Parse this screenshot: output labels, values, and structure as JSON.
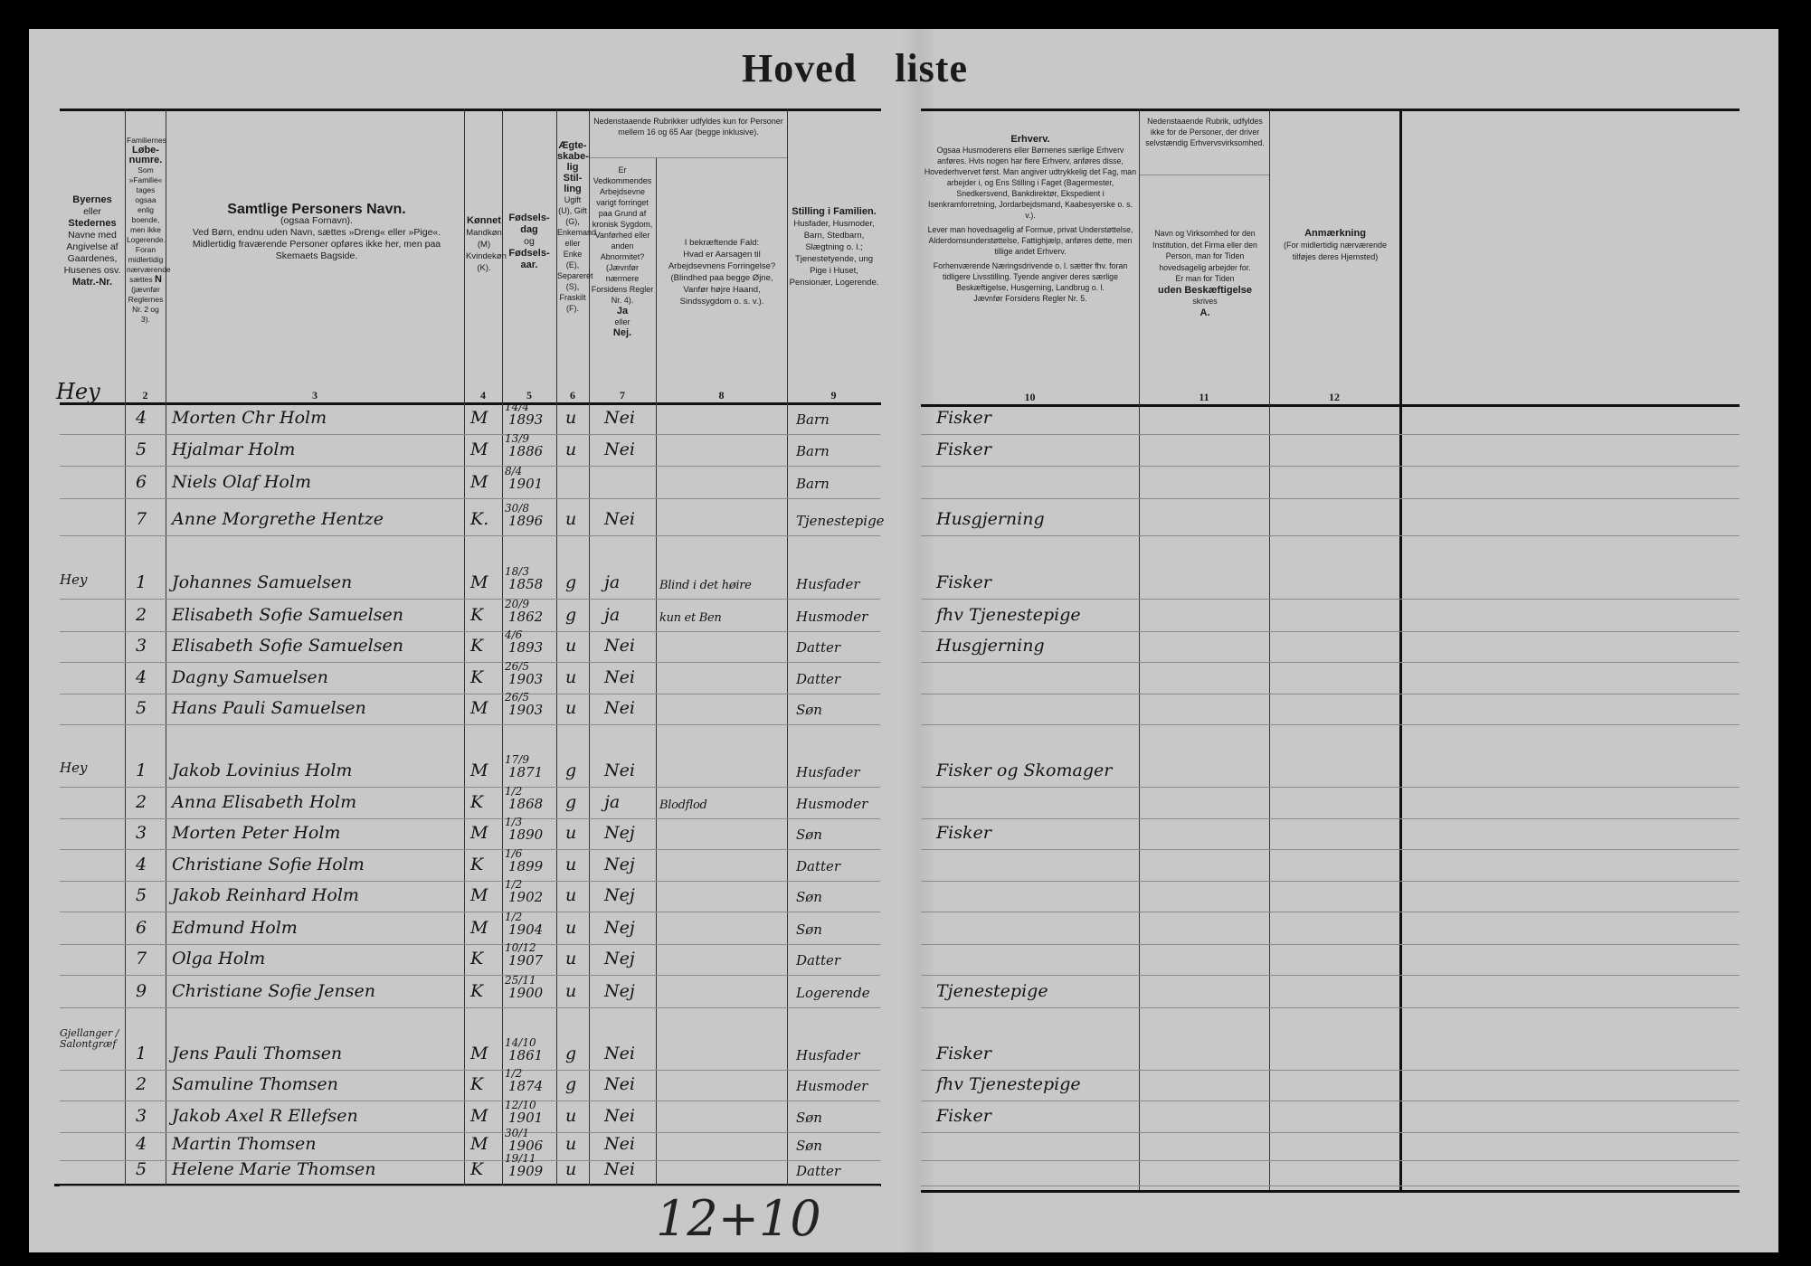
{
  "title": "Hoved  liste",
  "headers": {
    "c1": [
      "Byernes",
      "eller",
      "Stedernes",
      "Navne med Angivelse af Gaardenes, Husenes osv.",
      "Matr.-Nr."
    ],
    "c2": [
      "Familiernes",
      "Løbe-numre.",
      "Som »Familie« tages ogsaa enlig boende, men ikke Logerende. Foran midlertidig nærværende sættes",
      "N",
      "(jævnfør Reglernes Nr. 2 og 3)."
    ],
    "c3": [
      "Samtlige Personers Navn.",
      "(ogsaa Fornavn).",
      "Ved Børn, endnu uden Navn, sættes »Dreng« eller »Pige«.",
      "Midlertidig fraværende Personer opføres ikke her, men paa Skemaets Bagside."
    ],
    "c4": [
      "Kønnet",
      "Mandkøn (M) Kvindekøn (K)."
    ],
    "c5": [
      "Fødsels-dag",
      "og",
      "Fødsels-aar."
    ],
    "c6": [
      "Ægte-skabe-lig Stil-ling",
      "Ugift (U), Gift (G), Enkemand eller Enke (E), Separeret (S), Fraskilt (F)."
    ],
    "c78_top": "Nedenstaaende Rubrikker udfyldes kun for Personer mellem 16 og 65 Aar (begge inklusive).",
    "c7": [
      "Er Vedkommendes Arbejdsevne varigt forringet paa Grund af kronisk Sygdom, Vanførhed eller anden Abnormitet? (Jævnfør nærmere Forsidens Regler Nr. 4).",
      "Ja",
      "eller",
      "Nej."
    ],
    "c8": [
      "I bekræftende Fald:",
      "Hvad er Aarsagen til Arbejdsevnens Forringelse?",
      "(Blindhed paa begge Øjne, Vanfør højre Haand, Sindssygdom o. s. v.)."
    ],
    "c9": [
      "Stilling i Familien.",
      "Husfader, Husmoder, Barn, Stedbarn, Slægtning o. l.; Tjenestetyende, ung Pige i Huset, Pensionær, Logerende."
    ],
    "c10": [
      "Erhverv.",
      "Ogsaa Husmoderens eller Børnenes særlige Erhverv anføres. Hvis nogen har flere Erhverv, anføres disse, Hovederhvervet først. Man angiver udtrykkelig det Fag, man arbejder i, og Ens Stilling i Faget (Bagermester, Snedkersvend, Bankdirektør, Ekspedient i Isenkramforretning, Jordarbejdsmand, Kaabesyerske o. s. v.).",
      "Lever man hovedsagelig af Formue, privat Understøttelse, Alderdomsunderstøttelse, Fattighjælp, anføres dette, men tillige andet Erhverv.",
      "Forhenværende Næringsdrivende o. l. sætter fhv. foran tidligere Livsstilling. Tyende angiver deres særlige Beskæftigelse, Husgerning, Landbrug o. l.",
      "Jævnfør Forsidens Regler Nr. 5."
    ],
    "c11_top": "Nedenstaaende Rubrik, udfyldes ikke for de Personer, der driver selvstændig Erhvervsvirksomhed.",
    "c11": [
      "Navn og Virksomhed for den Institution, det Firma eller den Person, man for Tiden hovedsagelig arbejder for.",
      "Er man for Tiden",
      "uden Beskæftigelse",
      "skrives",
      "A."
    ],
    "c12": [
      "Anmærkning",
      "(For midlertidig nærværende tilføjes deres Hjemsted)"
    ]
  },
  "column_numbers": [
    "2",
    "3",
    "4",
    "5",
    "6",
    "7",
    "8",
    "9",
    "10",
    "11",
    "12"
  ],
  "first_place": "Hey",
  "rows": [
    {
      "place": "",
      "num": "4",
      "name": "Morten Chr Holm",
      "sex": "M",
      "day": "14/4",
      "year": "1893",
      "civil": "u",
      "disabled": "Nei",
      "cause": "",
      "family": "Barn",
      "occupation": "Fisker"
    },
    {
      "place": "",
      "num": "5",
      "name": "Hjalmar Holm",
      "sex": "M",
      "day": "13/9",
      "year": "1886",
      "civil": "u",
      "disabled": "Nei",
      "cause": "",
      "family": "Barn",
      "occupation": "Fisker"
    },
    {
      "place": "",
      "num": "6",
      "name": "Niels Olaf Holm",
      "sex": "M",
      "day": "8/4",
      "year": "1901",
      "civil": "",
      "disabled": "",
      "cause": "",
      "family": "Barn",
      "occupation": ""
    },
    {
      "place": "",
      "num": "7",
      "name": "Anne Morgrethe Hentze",
      "sex": "K.",
      "day": "30/8",
      "year": "1896",
      "civil": "u",
      "disabled": "Nei",
      "cause": "",
      "family": "Tjenestepige",
      "occupation": "Husgjerning"
    },
    {
      "place": "Hey",
      "num": "1",
      "name": "Johannes Samuelsen",
      "sex": "M",
      "day": "18/3",
      "year": "1858",
      "civil": "g",
      "disabled": "ja",
      "cause": "Blind i det høire",
      "family": "Husfader",
      "occupation": "Fisker"
    },
    {
      "place": "",
      "num": "2",
      "name": "Elisabeth Sofie Samuelsen",
      "sex": "K",
      "day": "20/9",
      "year": "1862",
      "civil": "g",
      "disabled": "ja",
      "cause": "kun et Ben",
      "family": "Husmoder",
      "occupation": "fhv Tjenestepige"
    },
    {
      "place": "",
      "num": "3",
      "name": "Elisabeth Sofie Samuelsen",
      "sex": "K",
      "day": "4/6",
      "year": "1893",
      "civil": "u",
      "disabled": "Nei",
      "cause": "",
      "family": "Datter",
      "occupation": "Husgjerning"
    },
    {
      "place": "",
      "num": "4",
      "name": "Dagny Samuelsen",
      "sex": "K",
      "day": "26/5",
      "year": "1903",
      "civil": "u",
      "disabled": "Nei",
      "cause": "",
      "family": "Datter",
      "occupation": ""
    },
    {
      "place": "",
      "num": "5",
      "name": "Hans Pauli Samuelsen",
      "sex": "M",
      "day": "26/5",
      "year": "1903",
      "civil": "u",
      "disabled": "Nei",
      "cause": "",
      "family": "Søn",
      "occupation": ""
    },
    {
      "place": "Hey",
      "num": "1",
      "name": "Jakob Lovinius Holm",
      "sex": "M",
      "day": "17/9",
      "year": "1871",
      "civil": "g",
      "disabled": "Nei",
      "cause": "",
      "family": "Husfader",
      "occupation": "Fisker og Skomager"
    },
    {
      "place": "",
      "num": "2",
      "name": "Anna Elisabeth Holm",
      "sex": "K",
      "day": "1/2",
      "year": "1868",
      "civil": "g",
      "disabled": "ja",
      "cause": "Blodflod",
      "family": "Husmoder",
      "occupation": ""
    },
    {
      "place": "",
      "num": "3",
      "name": "Morten Peter Holm",
      "sex": "M",
      "day": "1/3",
      "year": "1890",
      "civil": "u",
      "disabled": "Nej",
      "cause": "",
      "family": "Søn",
      "occupation": "Fisker"
    },
    {
      "place": "",
      "num": "4",
      "name": "Christiane Sofie Holm",
      "sex": "K",
      "day": "1/6",
      "year": "1899",
      "civil": "u",
      "disabled": "Nej",
      "cause": "",
      "family": "Datter",
      "occupation": ""
    },
    {
      "place": "",
      "num": "5",
      "name": "Jakob Reinhard Holm",
      "sex": "M",
      "day": "1/2",
      "year": "1902",
      "civil": "u",
      "disabled": "Nej",
      "cause": "",
      "family": "Søn",
      "occupation": ""
    },
    {
      "place": "",
      "num": "6",
      "name": "Edmund Holm",
      "sex": "M",
      "day": "1/2",
      "year": "1904",
      "civil": "u",
      "disabled": "Nej",
      "cause": "",
      "family": "Søn",
      "occupation": ""
    },
    {
      "place": "",
      "num": "7",
      "name": "Olga Holm",
      "sex": "K",
      "day": "10/12",
      "year": "1907",
      "civil": "u",
      "disabled": "Nej",
      "cause": "",
      "family": "Datter",
      "occupation": ""
    },
    {
      "place": "",
      "num": "9",
      "name": "Christiane Sofie Jensen",
      "sex": "K",
      "day": "25/11",
      "year": "1900",
      "civil": "u",
      "disabled": "Nej",
      "cause": "",
      "family": "Logerende",
      "occupation": "Tjenestepige"
    },
    {
      "place": "Gjellanger / Salontgræf",
      "num": "1",
      "name": "Jens Pauli Thomsen",
      "sex": "M",
      "day": "14/10",
      "year": "1861",
      "civil": "g",
      "disabled": "Nei",
      "cause": "",
      "family": "Husfader",
      "occupation": "Fisker"
    },
    {
      "place": "",
      "num": "2",
      "name": "Samuline Thomsen",
      "sex": "K",
      "day": "1/2",
      "year": "1874",
      "civil": "g",
      "disabled": "Nei",
      "cause": "",
      "family": "Husmoder",
      "occupation": "fhv Tjenestepige"
    },
    {
      "place": "",
      "num": "3",
      "name": "Jakob Axel R Ellefsen",
      "sex": "M",
      "day": "12/10",
      "year": "1901",
      "civil": "u",
      "disabled": "Nei",
      "cause": "",
      "family": "Søn",
      "occupation": "Fisker"
    },
    {
      "place": "",
      "num": "4",
      "name": "Martin Thomsen",
      "sex": "M",
      "day": "30/1",
      "year": "1906",
      "civil": "u",
      "disabled": "Nei",
      "cause": "",
      "family": "Søn",
      "occupation": ""
    },
    {
      "place": "",
      "num": "5",
      "name": "Helene Marie Thomsen",
      "sex": "K",
      "day": "19/11",
      "year": "1909",
      "civil": "u",
      "disabled": "Nei",
      "cause": "",
      "family": "Datter",
      "occupation": ""
    }
  ],
  "tally_mark": "12+10"
}
